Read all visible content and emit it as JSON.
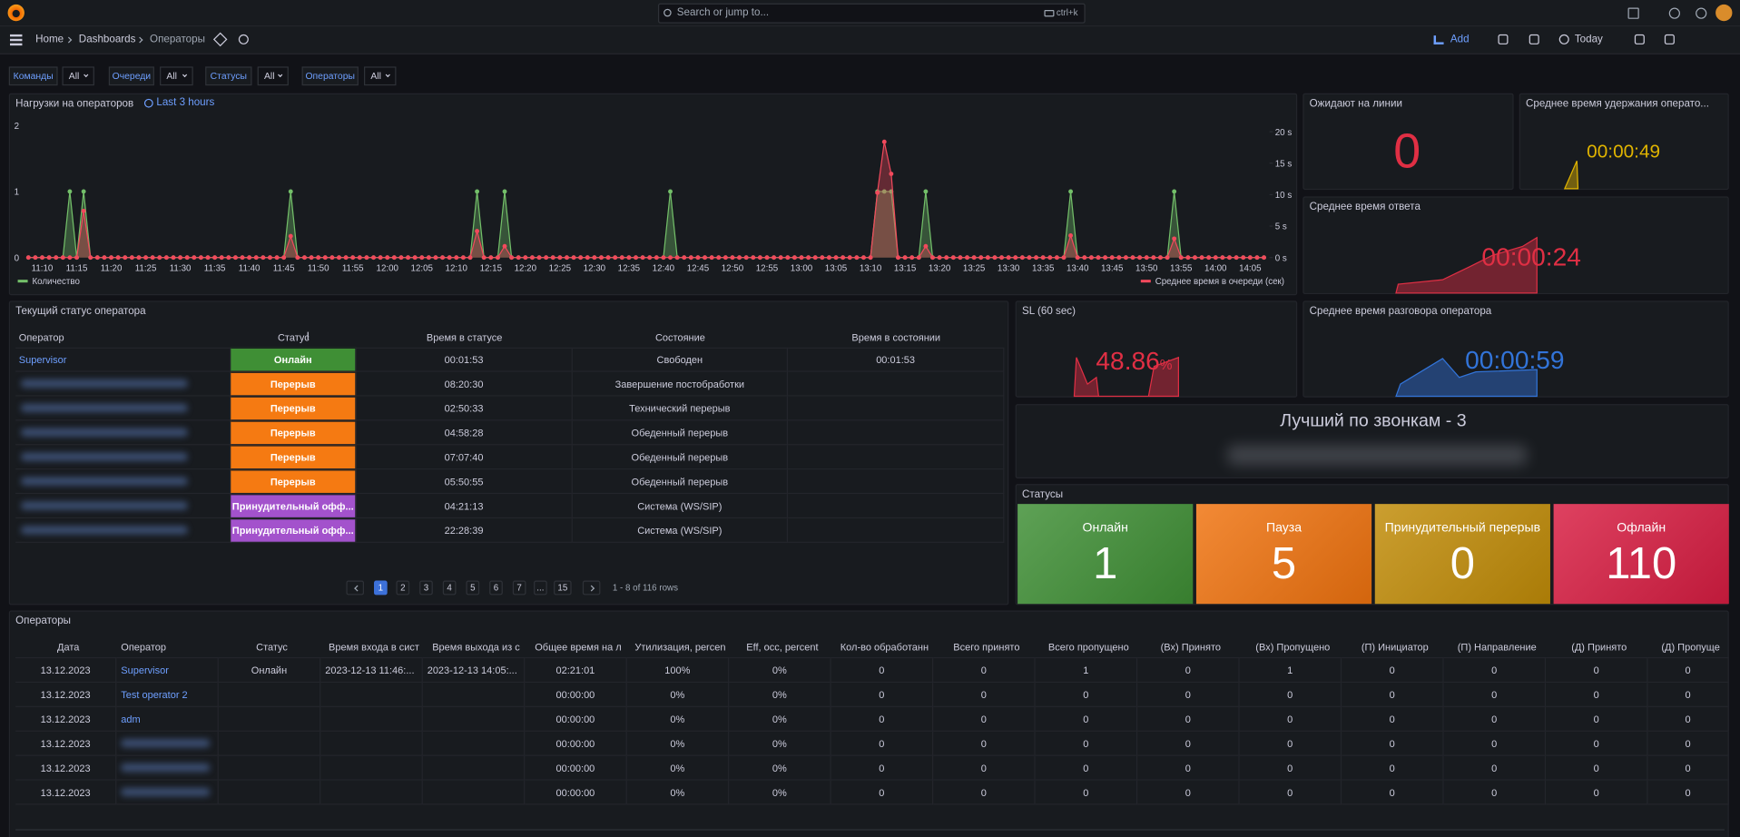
{
  "topbar": {
    "search": "Search or jump to...",
    "shortcut": "ctrl+k"
  },
  "breadcrumbs": [
    "Home",
    "Dashboards",
    "Операторы"
  ],
  "toolbar": {
    "add": "Add",
    "time_range": "Today"
  },
  "variables": [
    {
      "label": "Команды",
      "value": "All"
    },
    {
      "label": "Очереди",
      "value": "All"
    },
    {
      "label": "Статусы",
      "value": "All"
    },
    {
      "label": "Операторы",
      "value": "All"
    }
  ],
  "chart_data": {
    "type": "line",
    "title": "Нагрузки на операторов",
    "subtitle": "Last 3 hours",
    "x": [
      "11:08",
      "11:09",
      "11:10",
      "11:11",
      "11:12",
      "11:13",
      "11:14",
      "11:15",
      "11:16",
      "11:17",
      "11:18",
      "11:19",
      "11:20",
      "11:21",
      "11:22",
      "11:23",
      "11:24",
      "11:25",
      "11:26",
      "11:27",
      "11:28",
      "11:29",
      "11:30",
      "11:31",
      "11:32",
      "11:33",
      "11:34",
      "11:35",
      "11:36",
      "11:37",
      "11:38",
      "11:39",
      "11:40",
      "11:41",
      "11:42",
      "11:43",
      "11:44",
      "11:45",
      "11:46",
      "11:47",
      "11:48",
      "11:49",
      "11:50",
      "11:51",
      "11:52",
      "11:53",
      "11:54",
      "11:55",
      "11:56",
      "11:57",
      "11:58",
      "11:59",
      "12:00",
      "12:01",
      "12:02",
      "12:03",
      "12:04",
      "12:05",
      "12:06",
      "12:07",
      "12:08",
      "12:09",
      "12:10",
      "12:11",
      "12:12",
      "12:13",
      "12:14",
      "12:15",
      "12:16",
      "12:17",
      "12:18",
      "12:19",
      "12:20",
      "12:21",
      "12:22",
      "12:23",
      "12:24",
      "12:25",
      "12:26",
      "12:27",
      "12:28",
      "12:29",
      "12:30",
      "12:31",
      "12:32",
      "12:33",
      "12:34",
      "12:35",
      "12:36",
      "12:37",
      "12:38",
      "12:39",
      "12:40",
      "12:41",
      "12:42",
      "12:43",
      "12:44",
      "12:45",
      "12:46",
      "12:47",
      "12:48",
      "12:49",
      "12:50",
      "12:51",
      "12:52",
      "12:53",
      "12:54",
      "12:55",
      "12:56",
      "12:57",
      "12:58",
      "12:59",
      "13:00",
      "13:01",
      "13:02",
      "13:03",
      "13:04",
      "13:05",
      "13:06",
      "13:07",
      "13:08",
      "13:09",
      "13:10",
      "13:11",
      "13:12",
      "13:13",
      "13:14",
      "13:15",
      "13:16",
      "13:17",
      "13:18",
      "13:19",
      "13:20",
      "13:21",
      "13:22",
      "13:23",
      "13:24",
      "13:25",
      "13:26",
      "13:27",
      "13:28",
      "13:29",
      "13:30",
      "13:31",
      "13:32",
      "13:33",
      "13:34",
      "13:35",
      "13:36",
      "13:37",
      "13:38",
      "13:39",
      "13:40",
      "13:41",
      "13:42",
      "13:43",
      "13:44",
      "13:45",
      "13:46",
      "13:47",
      "13:48",
      "13:49",
      "13:50",
      "13:51",
      "13:52",
      "13:53",
      "13:54",
      "13:55",
      "13:56",
      "13:57",
      "13:58",
      "13:59",
      "14:00",
      "14:01",
      "14:02",
      "14:03",
      "14:04",
      "14:05",
      "14:06",
      "14:07"
    ],
    "xticks": [
      "11:10",
      "11:15",
      "11:20",
      "11:25",
      "11:30",
      "11:35",
      "11:40",
      "11:45",
      "11:50",
      "11:55",
      "12:00",
      "12:05",
      "12:10",
      "12:15",
      "12:20",
      "12:25",
      "12:30",
      "12:35",
      "12:40",
      "12:45",
      "12:50",
      "12:55",
      "13:00",
      "13:05",
      "13:10",
      "13:15",
      "13:20",
      "13:25",
      "13:30",
      "13:35",
      "13:40",
      "13:45",
      "13:50",
      "13:55",
      "14:00",
      "14:05"
    ],
    "ylim": [
      0,
      2
    ],
    "yticks": [
      0,
      1,
      2
    ],
    "y2lim": [
      0,
      21
    ],
    "y2ticks": [
      {
        "value": 0,
        "label": "0 s"
      },
      {
        "value": 5,
        "label": "5 s"
      },
      {
        "value": 10,
        "label": "10 s"
      },
      {
        "value": 15,
        "label": "15 s"
      },
      {
        "value": 20,
        "label": "20 s"
      }
    ],
    "grid": false,
    "series": [
      {
        "name": "Количество",
        "color": "#73bf69",
        "values": [
          0,
          0,
          0,
          0,
          0,
          0,
          1,
          0,
          1,
          0,
          0,
          0,
          0,
          0,
          0,
          0,
          0,
          0,
          0,
          0,
          0,
          0,
          0,
          0,
          0,
          0,
          0,
          0,
          0,
          0,
          0,
          0,
          0,
          0,
          0,
          0,
          0,
          0,
          1,
          0,
          0,
          0,
          0,
          0,
          0,
          0,
          0,
          0,
          0,
          0,
          0,
          0,
          0,
          0,
          0,
          0,
          0,
          0,
          0,
          0,
          0,
          0,
          0,
          0,
          0,
          1,
          0,
          0,
          0,
          1,
          0,
          0,
          0,
          0,
          0,
          0,
          0,
          0,
          0,
          0,
          0,
          0,
          0,
          0,
          0,
          0,
          0,
          0,
          0,
          0,
          0,
          0,
          0,
          1,
          0,
          0,
          0,
          0,
          0,
          0,
          0,
          0,
          0,
          0,
          0,
          0,
          0,
          0,
          0,
          0,
          0,
          0,
          0,
          0,
          0,
          0,
          0,
          0,
          0,
          0,
          0,
          0,
          0,
          1,
          1,
          1,
          0,
          0,
          0,
          0,
          1,
          0,
          0,
          0,
          0,
          0,
          0,
          0,
          0,
          0,
          0,
          0,
          0,
          0,
          0,
          0,
          0,
          0,
          0,
          0,
          0,
          1,
          0,
          0,
          0,
          0,
          0,
          0,
          0,
          0,
          0,
          0,
          0,
          0,
          0,
          0,
          1,
          0,
          0,
          0,
          0,
          0,
          0,
          0,
          0,
          0,
          0,
          0,
          0,
          0
        ]
      },
      {
        "name": "Среднее время в очереди (сек)",
        "color": "#f2495c",
        "axis": "y2",
        "values": [
          0,
          0,
          0,
          0,
          0,
          0,
          0,
          0,
          7.4,
          0,
          0,
          0,
          0,
          0,
          0,
          0,
          0,
          0,
          0,
          0,
          0,
          0,
          0,
          0,
          0,
          0,
          0,
          0,
          0,
          0,
          0,
          0,
          0,
          0,
          0,
          0,
          0,
          0,
          3.4,
          0,
          0,
          0,
          0,
          0,
          0,
          0,
          0,
          0,
          0,
          0,
          0,
          0,
          0,
          0,
          0,
          0,
          0,
          0,
          0,
          0,
          0,
          0,
          0,
          0,
          0,
          4.2,
          0,
          0,
          0,
          1.8,
          0,
          0,
          0,
          0,
          0,
          0,
          0,
          0,
          0,
          0,
          0,
          0,
          0,
          0,
          0,
          0,
          0,
          0,
          0,
          0,
          0,
          0,
          0,
          0,
          0,
          0,
          0,
          0,
          0,
          0,
          0,
          0,
          0,
          0,
          0,
          0,
          0,
          0,
          0,
          0,
          0,
          0,
          0,
          0,
          0,
          0,
          0,
          0,
          0,
          0,
          0,
          0,
          0,
          10.3,
          18.4,
          13.3,
          0,
          0,
          0,
          0,
          1.8,
          0,
          0,
          0,
          0,
          0,
          0,
          0,
          0,
          0,
          0,
          0,
          0,
          0,
          0,
          0,
          0,
          0,
          0,
          0,
          0,
          3.5,
          0,
          0,
          0,
          0,
          0,
          0,
          0,
          0,
          0,
          0,
          0,
          0,
          0,
          0,
          3,
          0,
          0,
          0,
          0,
          0,
          0,
          0,
          0,
          0,
          0,
          0,
          0,
          0
        ]
      }
    ]
  },
  "stats": [
    {
      "title": "Ожидают на линии",
      "value": "0",
      "color": "#e02f44"
    },
    {
      "title": "Среднее время удержания операто...",
      "value": "00:00:49",
      "color": "#e0b400"
    },
    {
      "title": "Среднее время ответа",
      "value": "00:00:24",
      "color": "#e02f44"
    },
    {
      "title": "SL (60 sec)",
      "value": "48.86",
      "unit": "%",
      "color": "#e02f44"
    },
    {
      "title": "Среднее время разговора оператора",
      "value": "00:00:59",
      "color": "#3274d9"
    }
  ],
  "best": {
    "title": "Лучший по звонкам - 3"
  },
  "statuses": {
    "title": "Статусы",
    "items": [
      {
        "name": "Онлайн",
        "value": 1,
        "color": "#3f8f35"
      },
      {
        "name": "Пауза",
        "value": 5,
        "color": "#f0730f"
      },
      {
        "name": "Принудительный перерыв",
        "value": 0,
        "color": "#c18c08"
      },
      {
        "name": "Офлайн",
        "value": 110,
        "color": "#d81d42"
      }
    ]
  },
  "status_table": {
    "title": "Текущий статус оператора",
    "columns": [
      "Оператор",
      "Статус",
      "Время в статусе",
      "Состояние",
      "Время в состоянии"
    ],
    "rows": [
      [
        "Supervisor",
        "Онлайн",
        "00:01:53",
        "Свободен",
        "00:01:53"
      ],
      [
        null,
        "Перерыв",
        "08:20:30",
        "Завершение постобработки",
        null
      ],
      [
        null,
        "Перерыв",
        "02:50:33",
        "Технический перерыв",
        null
      ],
      [
        null,
        "Перерыв",
        "04:58:28",
        "Обеденный перерыв",
        null
      ],
      [
        null,
        "Перерыв",
        "07:07:40",
        "Обеденный перерыв",
        null
      ],
      [
        null,
        "Перерыв",
        "05:50:55",
        "Обеденный перерыв",
        null
      ],
      [
        null,
        "Принудительный офф...",
        "04:21:13",
        "Система (WS/SIP)",
        null
      ],
      [
        null,
        "Принудительный офф...",
        "22:28:39",
        "Система (WS/SIP)",
        null
      ]
    ],
    "status_colors": [
      "#3f8f35",
      "#f57a12",
      "#f57a12",
      "#f57a12",
      "#f57a12",
      "#f57a12",
      "#a352cc",
      "#a352cc"
    ],
    "pages": [
      "1",
      "2",
      "3",
      "4",
      "5",
      "6",
      "7",
      "...",
      "15"
    ],
    "rows_info": "1 - 8 of 116 rows"
  },
  "operators_table": {
    "title": "Операторы",
    "columns": [
      "Дата",
      "Оператор",
      "Статус",
      "Время входа в сист",
      "Время выхода из с",
      "Общее время на л",
      "Утилизация, percen",
      "Eff, occ, percent",
      "Кол-во обработанн",
      "Всего принято",
      "Всего пропущено",
      "(Вх) Принято",
      "(Вх) Пропущено",
      "(П) Инициатор",
      "(П) Направление",
      "(Д) Принято",
      "(Д) Пропуще"
    ],
    "rows": [
      [
        "13.12.2023",
        "Supervisor",
        "Онлайн",
        "2023-12-13 11:46:...",
        "2023-12-13 14:05:...",
        "02:21:01",
        "100%",
        "0%",
        0,
        0,
        1,
        0,
        1,
        0,
        0,
        0,
        0
      ],
      [
        "13.12.2023",
        "Test operator 2",
        null,
        null,
        null,
        "00:00:00",
        "0%",
        "0%",
        0,
        0,
        0,
        0,
        0,
        0,
        0,
        0,
        0
      ],
      [
        "13.12.2023",
        "adm",
        null,
        null,
        null,
        "00:00:00",
        "0%",
        "0%",
        0,
        0,
        0,
        0,
        0,
        0,
        0,
        0,
        0
      ],
      [
        "13.12.2023",
        null,
        null,
        null,
        null,
        "00:00:00",
        "0%",
        "0%",
        0,
        0,
        0,
        0,
        0,
        0,
        0,
        0,
        0
      ],
      [
        "13.12.2023",
        null,
        null,
        null,
        null,
        "00:00:00",
        "0%",
        "0%",
        0,
        0,
        0,
        0,
        0,
        0,
        0,
        0,
        0
      ],
      [
        "13.12.2023",
        null,
        null,
        null,
        null,
        "00:00:00",
        "0%",
        "0%",
        0,
        0,
        0,
        0,
        0,
        0,
        0,
        0,
        0
      ]
    ]
  }
}
